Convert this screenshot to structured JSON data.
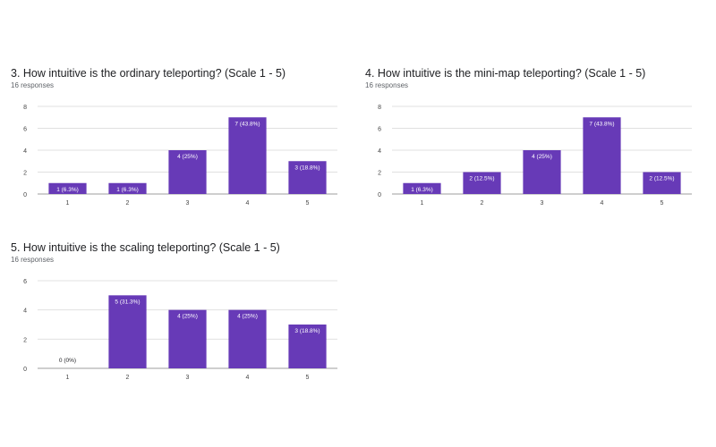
{
  "chart_data": [
    {
      "type": "bar",
      "title": "3. How intuitive is the ordinary teleporting?  (Scale 1 - 5)",
      "subtitle": "16 responses",
      "categories": [
        "1",
        "2",
        "3",
        "4",
        "5"
      ],
      "values": [
        1,
        1,
        4,
        7,
        3
      ],
      "data_labels": [
        "1 (6.3%)",
        "1 (6.3%)",
        "4 (25%)",
        "7 (43.8%)",
        "3 (18.8%)"
      ],
      "yticks": [
        0,
        2,
        4,
        6,
        8
      ],
      "ylim": [
        0,
        8
      ],
      "grid": true,
      "bar_color": "#673ab7"
    },
    {
      "type": "bar",
      "title": "4. How intuitive is the mini-map teleporting?  (Scale 1 - 5)",
      "subtitle": "16 responses",
      "categories": [
        "1",
        "2",
        "3",
        "4",
        "5"
      ],
      "values": [
        1,
        2,
        4,
        7,
        2
      ],
      "data_labels": [
        "1 (6.3%)",
        "2 (12.5%)",
        "4 (25%)",
        "7 (43.8%)",
        "2 (12.5%)"
      ],
      "yticks": [
        0,
        2,
        4,
        6,
        8
      ],
      "ylim": [
        0,
        8
      ],
      "grid": true,
      "bar_color": "#673ab7"
    },
    {
      "type": "bar",
      "title": "5. How intuitive is the scaling teleporting?  (Scale 1 - 5)",
      "subtitle": "16 responses",
      "categories": [
        "1",
        "2",
        "3",
        "4",
        "5"
      ],
      "values": [
        0,
        5,
        4,
        4,
        3
      ],
      "data_labels": [
        "0 (0%)",
        "5 (31.3%)",
        "4 (25%)",
        "4 (25%)",
        "3 (18.8%)"
      ],
      "yticks": [
        0,
        2,
        4,
        6
      ],
      "ylim": [
        0,
        6
      ],
      "grid": true,
      "bar_color": "#673ab7"
    }
  ]
}
